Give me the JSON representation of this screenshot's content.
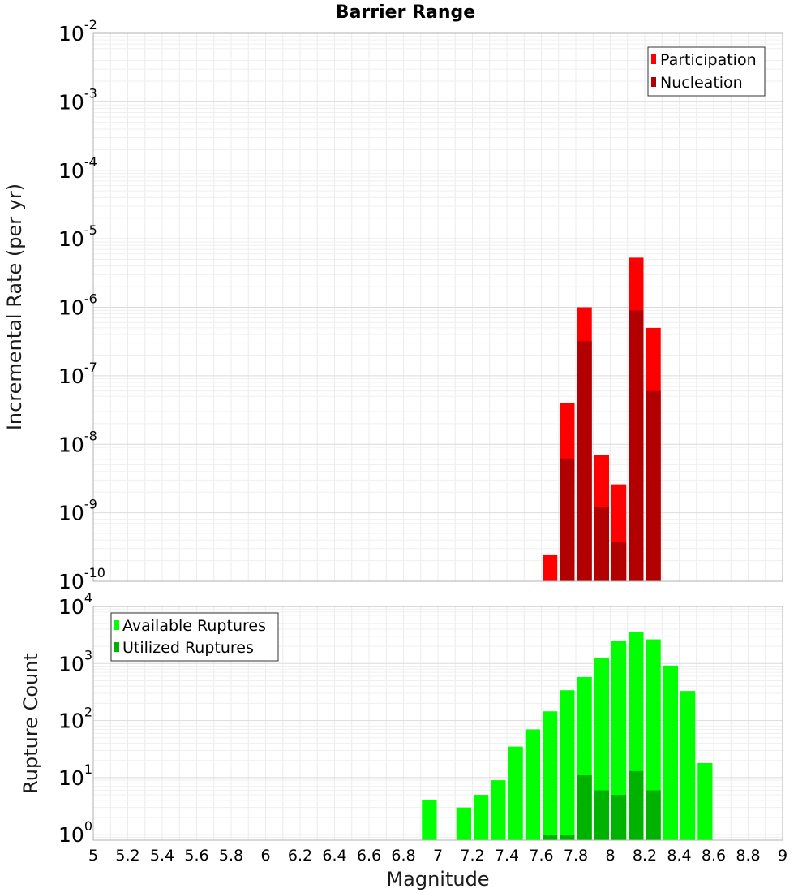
{
  "title": "Barrier Range",
  "chart_data": [
    {
      "type": "bar",
      "name": "rate-panel",
      "ylabel": "Incremental Rate (per yr)",
      "yscale": "log",
      "ylim": [
        1e-10,
        0.01
      ],
      "y_ticks": [
        {
          "base": "10",
          "exp": "-2"
        },
        {
          "base": "10",
          "exp": "-3"
        },
        {
          "base": "10",
          "exp": "-4"
        },
        {
          "base": "10",
          "exp": "-5"
        },
        {
          "base": "10",
          "exp": "-6"
        },
        {
          "base": "10",
          "exp": "-7"
        },
        {
          "base": "10",
          "exp": "-8"
        },
        {
          "base": "10",
          "exp": "-9"
        },
        {
          "base": "10",
          "exp": "-10"
        }
      ],
      "xlim": [
        5,
        9
      ],
      "bin_width": 0.1,
      "legend_position": "top-right",
      "series": [
        {
          "name": "Participation",
          "color": "#ff0000",
          "x": [
            7.65,
            7.75,
            7.85,
            7.95,
            8.05,
            8.15,
            8.25
          ],
          "values": [
            2.4e-10,
            4e-08,
            1e-06,
            7e-09,
            2.6e-09,
            5.3e-06,
            5e-07
          ]
        },
        {
          "name": "Nucleation",
          "color": "#b20000",
          "x": [
            7.75,
            7.85,
            7.95,
            8.05,
            8.15,
            8.25
          ],
          "values": [
            6.2e-09,
            3.2e-07,
            1.2e-09,
            3.7e-10,
            9e-07,
            6e-08
          ]
        }
      ]
    },
    {
      "type": "bar",
      "name": "count-panel",
      "ylabel": "Rupture Count",
      "xlabel": "Magnitude",
      "yscale": "log",
      "ylim": [
        0.8,
        10000
      ],
      "y_ticks": [
        {
          "base": "10",
          "exp": "4"
        },
        {
          "base": "10",
          "exp": "3"
        },
        {
          "base": "10",
          "exp": "2"
        },
        {
          "base": "10",
          "exp": "1"
        },
        {
          "base": "10",
          "exp": "0"
        }
      ],
      "xlim": [
        5,
        9
      ],
      "x_ticks": [
        "5",
        "5.2",
        "5.4",
        "5.6",
        "5.8",
        "6",
        "6.2",
        "6.4",
        "6.6",
        "6.8",
        "7",
        "7.2",
        "7.4",
        "7.6",
        "7.8",
        "8",
        "8.2",
        "8.4",
        "8.6",
        "8.8",
        "9"
      ],
      "bin_width": 0.1,
      "legend_position": "top-left",
      "series": [
        {
          "name": "Available Ruptures",
          "color": "#00ff00",
          "x": [
            6.95,
            7.15,
            7.25,
            7.35,
            7.45,
            7.55,
            7.65,
            7.75,
            7.85,
            7.95,
            8.05,
            8.15,
            8.25,
            8.35,
            8.45,
            8.55
          ],
          "values": [
            4,
            3,
            5,
            9,
            35,
            70,
            145,
            340,
            580,
            1250,
            2500,
            3600,
            2650,
            920,
            330,
            18
          ]
        },
        {
          "name": "Utilized Ruptures",
          "color": "#00b200",
          "x": [
            7.65,
            7.75,
            7.85,
            7.95,
            8.05,
            8.15,
            8.25
          ],
          "values": [
            1,
            1,
            11,
            6,
            5,
            13,
            6
          ]
        }
      ]
    }
  ]
}
